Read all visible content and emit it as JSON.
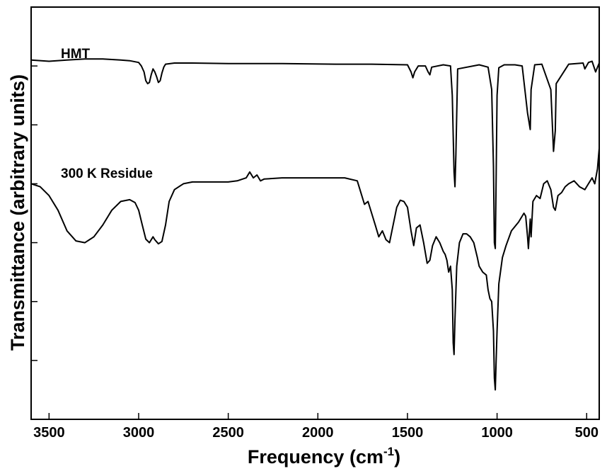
{
  "chart_data": {
    "type": "line",
    "title": "",
    "xlabel": "Frequency (cm",
    "xlabel_sup": "-1",
    "xlabel_suffix": ")",
    "ylabel": "Transmittance (arbitrary units)",
    "xlim": [
      3600,
      430
    ],
    "x_reversed": true,
    "ylim": [
      0,
      7
    ],
    "y_tick_labels_shown": false,
    "grid": false,
    "legend": "none",
    "x_ticks": [
      3500,
      3000,
      2500,
      2000,
      1500,
      1000,
      500
    ],
    "x_tick_labels": [
      "3500",
      "3000",
      "2500",
      "2000",
      "1500",
      "1000",
      "500"
    ],
    "y_ticks": [
      1,
      2,
      3,
      4,
      5,
      6
    ],
    "line_color": "#000000",
    "series": [
      {
        "name": "HMT",
        "x": [
          3600,
          3500,
          3400,
          3300,
          3200,
          3100,
          3050,
          3000,
          2985,
          2970,
          2960,
          2950,
          2940,
          2930,
          2920,
          2910,
          2900,
          2890,
          2880,
          2870,
          2860,
          2850,
          2800,
          2700,
          2500,
          2200,
          1900,
          1700,
          1500,
          1480,
          1470,
          1460,
          1440,
          1400,
          1385,
          1375,
          1365,
          1300,
          1260,
          1250,
          1240,
          1235,
          1230,
          1220,
          1100,
          1050,
          1030,
          1020,
          1015,
          1010,
          1005,
          1000,
          990,
          960,
          900,
          860,
          830,
          815,
          810,
          790,
          750,
          700,
          685,
          675,
          670,
          600,
          520,
          510,
          490,
          470,
          450,
          430
        ],
        "y": [
          6.1,
          6.08,
          6.1,
          6.12,
          6.12,
          6.1,
          6.09,
          6.06,
          6.0,
          5.9,
          5.75,
          5.7,
          5.72,
          5.85,
          5.95,
          5.9,
          5.82,
          5.72,
          5.75,
          5.88,
          5.98,
          6.03,
          6.05,
          6.05,
          6.04,
          6.04,
          6.03,
          6.03,
          6.02,
          5.9,
          5.8,
          5.9,
          6.0,
          6.0,
          5.9,
          5.85,
          5.98,
          6.02,
          6.0,
          5.5,
          4.2,
          3.95,
          4.5,
          5.95,
          6.02,
          5.98,
          5.6,
          4.3,
          3.0,
          2.9,
          4.1,
          5.5,
          5.97,
          6.02,
          6.02,
          6.0,
          5.2,
          4.92,
          5.6,
          6.02,
          6.03,
          5.6,
          4.55,
          4.9,
          5.7,
          6.03,
          6.05,
          5.95,
          6.06,
          6.08,
          5.9,
          6.05
        ]
      },
      {
        "name": "300 K Residue",
        "x": [
          3600,
          3550,
          3500,
          3450,
          3400,
          3350,
          3300,
          3250,
          3200,
          3150,
          3100,
          3050,
          3020,
          3000,
          2980,
          2960,
          2940,
          2920,
          2910,
          2890,
          2870,
          2850,
          2830,
          2800,
          2750,
          2700,
          2600,
          2500,
          2450,
          2400,
          2380,
          2360,
          2340,
          2320,
          2300,
          2200,
          2000,
          1850,
          1780,
          1760,
          1740,
          1720,
          1700,
          1680,
          1660,
          1640,
          1620,
          1600,
          1580,
          1560,
          1540,
          1520,
          1500,
          1480,
          1465,
          1450,
          1430,
          1410,
          1390,
          1375,
          1360,
          1340,
          1320,
          1300,
          1290,
          1280,
          1270,
          1260,
          1250,
          1245,
          1240,
          1235,
          1225,
          1210,
          1190,
          1170,
          1150,
          1130,
          1110,
          1100,
          1080,
          1060,
          1050,
          1040,
          1030,
          1020,
          1015,
          1010,
          1005,
          1000,
          990,
          970,
          950,
          920,
          880,
          850,
          840,
          830,
          825,
          815,
          810,
          800,
          780,
          760,
          740,
          720,
          700,
          685,
          675,
          660,
          640,
          620,
          600,
          570,
          540,
          510,
          490,
          470,
          455,
          440,
          430
        ],
        "y": [
          4.0,
          3.95,
          3.8,
          3.55,
          3.2,
          3.03,
          3.0,
          3.1,
          3.3,
          3.55,
          3.7,
          3.73,
          3.68,
          3.55,
          3.3,
          3.06,
          3.0,
          3.1,
          3.05,
          2.98,
          3.02,
          3.3,
          3.7,
          3.9,
          4.0,
          4.03,
          4.03,
          4.03,
          4.05,
          4.1,
          4.2,
          4.1,
          4.15,
          4.05,
          4.08,
          4.1,
          4.1,
          4.1,
          4.05,
          3.85,
          3.65,
          3.7,
          3.5,
          3.3,
          3.1,
          3.2,
          3.05,
          3.0,
          3.3,
          3.6,
          3.72,
          3.7,
          3.6,
          3.2,
          2.95,
          3.25,
          3.3,
          3.0,
          2.65,
          2.7,
          2.95,
          3.1,
          3.0,
          2.85,
          2.8,
          2.7,
          2.5,
          2.6,
          2.2,
          1.3,
          1.1,
          1.7,
          2.6,
          3.0,
          3.15,
          3.15,
          3.1,
          3.0,
          2.75,
          2.6,
          2.5,
          2.45,
          2.2,
          2.05,
          2.0,
          1.5,
          0.7,
          0.5,
          1.0,
          1.5,
          2.3,
          2.75,
          2.95,
          3.2,
          3.35,
          3.5,
          3.45,
          3.1,
          2.9,
          3.4,
          3.1,
          3.7,
          3.8,
          3.75,
          4.0,
          4.05,
          3.9,
          3.6,
          3.55,
          3.8,
          3.85,
          3.95,
          4.0,
          4.05,
          3.95,
          3.9,
          4.0,
          4.1,
          4.0,
          4.25,
          4.6
        ]
      }
    ],
    "annotations": [
      "HMT",
      "300 K Residue"
    ]
  }
}
